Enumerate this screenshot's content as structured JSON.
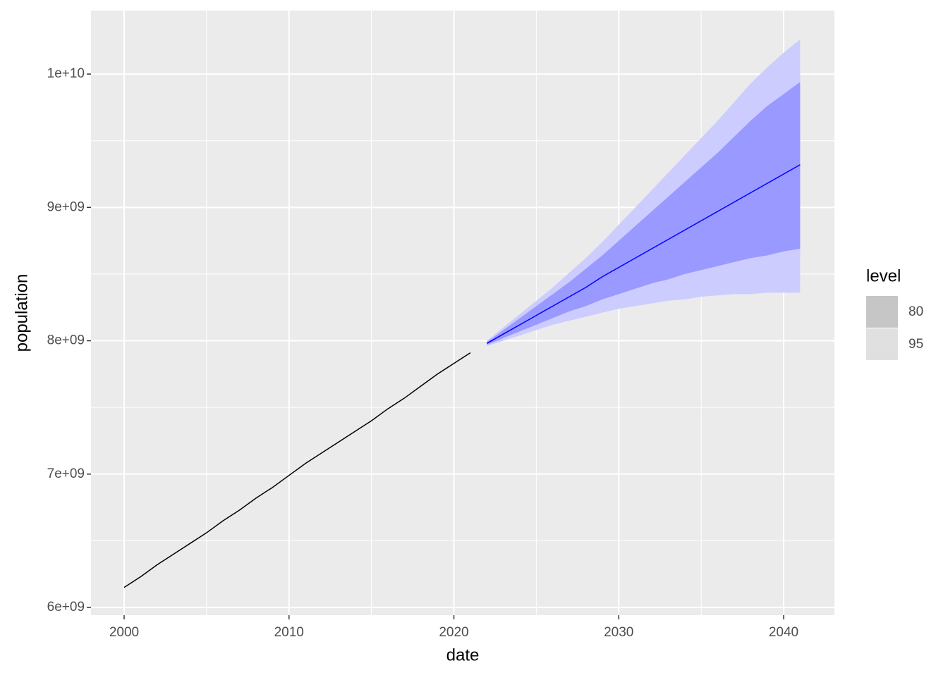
{
  "chart_data": {
    "type": "forecast",
    "x_label": "date",
    "y_label": "population",
    "xlim": [
      1997.99,
      2043.08
    ],
    "ylim": [
      5942000000,
      10476000000
    ],
    "xticks": [
      2000,
      2010,
      2020,
      2030,
      2040
    ],
    "yticks": [
      {
        "value": 6000000000,
        "label": "6e+09"
      },
      {
        "value": 7000000000,
        "label": "7e+09"
      },
      {
        "value": 8000000000,
        "label": "8e+09"
      },
      {
        "value": 9000000000,
        "label": "9e+09"
      },
      {
        "value": 10000000000,
        "label": "1e+10"
      }
    ],
    "x_minor_grid": [
      2005,
      2015,
      2025,
      2035
    ],
    "y_minor_grid": [
      6500000000,
      7500000000,
      8500000000,
      9500000000
    ],
    "grid": true,
    "history": {
      "color": "#000000",
      "x": [
        2000,
        2001,
        2002,
        2003,
        2004,
        2005,
        2006,
        2007,
        2008,
        2009,
        2010,
        2011,
        2012,
        2013,
        2014,
        2015,
        2016,
        2017,
        2018,
        2019,
        2020,
        2021
      ],
      "values": [
        6150000000,
        6230000000,
        6320000000,
        6400000000,
        6480000000,
        6560000000,
        6650000000,
        6730000000,
        6820000000,
        6900000000,
        6990000000,
        7080000000,
        7160000000,
        7240000000,
        7320000000,
        7400000000,
        7490000000,
        7570000000,
        7660000000,
        7750000000,
        7830000000,
        7910000000
      ]
    },
    "forecast": {
      "color": "#0000ff",
      "x": [
        2022,
        2023,
        2024,
        2025,
        2026,
        2027,
        2028,
        2029,
        2030,
        2031,
        2032,
        2033,
        2034,
        2035,
        2036,
        2037,
        2038,
        2039,
        2040,
        2041
      ],
      "values": [
        7980000000,
        8050000000,
        8120000000,
        8190000000,
        8260000000,
        8330000000,
        8400000000,
        8480000000,
        8550000000,
        8620000000,
        8690000000,
        8760000000,
        8830000000,
        8900000000,
        8970000000,
        9040000000,
        9110000000,
        9180000000,
        9250000000,
        9320000000
      ]
    },
    "legend_title": "level",
    "intervals": [
      {
        "name": "95",
        "color": "#ccccff",
        "legend_color": "#e0e0e0",
        "lower": [
          7960000000,
          8000000000,
          8040000000,
          8080000000,
          8120000000,
          8150000000,
          8180000000,
          8210000000,
          8240000000,
          8260000000,
          8280000000,
          8300000000,
          8310000000,
          8330000000,
          8340000000,
          8350000000,
          8350000000,
          8360000000,
          8360000000,
          8360000000
        ],
        "upper": [
          8000000000,
          8100000000,
          8200000000,
          8300000000,
          8400000000,
          8510000000,
          8620000000,
          8740000000,
          8870000000,
          9000000000,
          9130000000,
          9260000000,
          9390000000,
          9520000000,
          9650000000,
          9790000000,
          9930000000,
          10050000000,
          10160000000,
          10260000000
        ]
      },
      {
        "name": "80",
        "color": "#9999ff",
        "legend_color": "#c6c6c6",
        "lower": [
          7970000000,
          8020000000,
          8070000000,
          8120000000,
          8170000000,
          8220000000,
          8260000000,
          8310000000,
          8350000000,
          8390000000,
          8430000000,
          8460000000,
          8500000000,
          8530000000,
          8560000000,
          8590000000,
          8620000000,
          8640000000,
          8670000000,
          8690000000
        ],
        "upper": [
          7990000000,
          8080000000,
          8170000000,
          8260000000,
          8350000000,
          8440000000,
          8540000000,
          8640000000,
          8750000000,
          8860000000,
          8970000000,
          9080000000,
          9190000000,
          9300000000,
          9410000000,
          9530000000,
          9650000000,
          9760000000,
          9850000000,
          9940000000
        ]
      }
    ]
  }
}
